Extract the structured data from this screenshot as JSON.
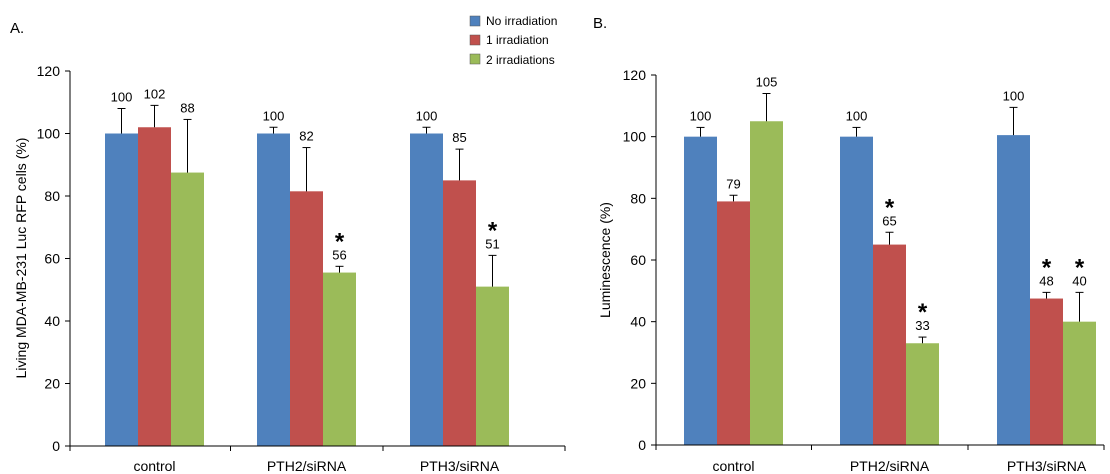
{
  "legend": {
    "colors": [
      "#4f81bd",
      "#c0504d",
      "#9bbb59"
    ]
  },
  "chart_data": [
    {
      "type": "bar",
      "panel_label": "A.",
      "ylabel": "Living MDA-MB-231 Luc RFP cells (%)",
      "ylim": [
        0,
        120
      ],
      "yticks": [
        "0",
        "20",
        "40",
        "60",
        "80",
        "100",
        "120"
      ],
      "categories": [
        "control",
        "PTH2/siRNA",
        "PTH3/siRNA"
      ],
      "series": [
        {
          "name": "No irradiation",
          "color": "#4f81bd",
          "values": [
            100,
            100,
            100
          ],
          "errors": [
            8,
            2,
            2
          ],
          "labels": [
            "100",
            "100",
            "100"
          ],
          "significant": [
            false,
            false,
            false
          ]
        },
        {
          "name": "1 irradiation",
          "color": "#c0504d",
          "values": [
            102,
            81.5,
            85
          ],
          "errors": [
            7,
            14,
            10
          ],
          "labels": [
            "102",
            "82",
            "85"
          ],
          "significant": [
            false,
            false,
            false
          ]
        },
        {
          "name": "2 irradiations",
          "color": "#9bbb59",
          "values": [
            87.5,
            55.5,
            51
          ],
          "errors": [
            17,
            2,
            10
          ],
          "labels": [
            "88",
            "56",
            "51"
          ],
          "significant": [
            false,
            true,
            true
          ]
        }
      ],
      "legend": "top",
      "grid": false
    },
    {
      "type": "bar",
      "panel_label": "B.",
      "ylabel": "Luminescence (%)",
      "ylim": [
        0,
        120
      ],
      "yticks": [
        "0",
        "20",
        "40",
        "60",
        "80",
        "100",
        "120"
      ],
      "categories": [
        "control",
        "PTH2/siRNA",
        "PTH3/siRNA"
      ],
      "series": [
        {
          "name": "No irradiation",
          "color": "#4f81bd",
          "values": [
            100,
            100,
            100.5
          ],
          "errors": [
            3,
            3,
            9
          ],
          "labels": [
            "100",
            "100",
            "100"
          ],
          "significant": [
            false,
            false,
            false
          ]
        },
        {
          "name": "1 irradiation",
          "color": "#c0504d",
          "values": [
            79,
            65,
            47.5
          ],
          "errors": [
            2,
            4,
            2
          ],
          "labels": [
            "79",
            "65",
            "48"
          ],
          "significant": [
            false,
            true,
            true
          ]
        },
        {
          "name": "2 irradiations",
          "color": "#9bbb59",
          "values": [
            105,
            33,
            40
          ],
          "errors": [
            9,
            2,
            9.5
          ],
          "labels": [
            "105",
            "33",
            "40"
          ],
          "significant": [
            false,
            true,
            true
          ]
        }
      ],
      "grid": false
    }
  ],
  "significance_mark": "*"
}
